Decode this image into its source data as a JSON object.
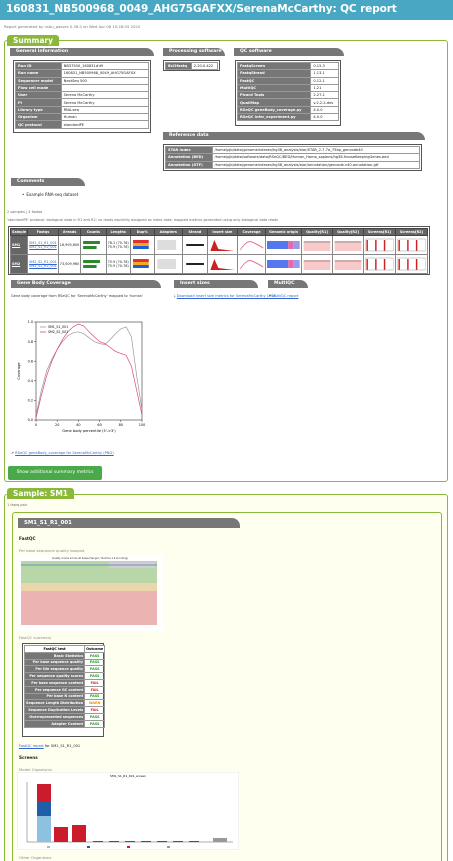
{
  "header": {
    "title": "160831_NB500968_0049_AHG75GAFXX/SerenaMcCarthy: QC report",
    "generated": "Report generated by nsbu_passes 0.36.0 on Wed Apr 08 10:28:05 2020"
  },
  "summary": {
    "tab": "Summary",
    "general_info": {
      "title": "General information",
      "rows": [
        {
          "k": "Run ID",
          "v": "NB37500_160831#49"
        },
        {
          "k": "Run name",
          "v": "160831_NB500968_0049_AHG75GAFXX"
        },
        {
          "k": "Sequencer model",
          "v": "NextSeq 500"
        },
        {
          "k": "Flow cell mode",
          "v": ""
        },
        {
          "k": "User",
          "v": "Serena McCarthy"
        },
        {
          "k": "PI",
          "v": "Serena McCarthy"
        },
        {
          "k": "Library type",
          "v": "RNA-seq"
        },
        {
          "k": "Organism",
          "v": "Human"
        },
        {
          "k": "QC protocol",
          "v": "standardPE"
        }
      ]
    },
    "processing": {
      "title": "Processing software",
      "rows": [
        {
          "k": "Bcl2fastq",
          "v": "2.20.0.422"
        }
      ]
    },
    "qc_software": {
      "title": "QC software",
      "rows": [
        {
          "k": "FastqScreen",
          "v": "0.15.3"
        },
        {
          "k": "FastqStrand",
          "v": "1.13.1"
        },
        {
          "k": "FastQC",
          "v": "0.12.1"
        },
        {
          "k": "MultiQC",
          "v": "1.21"
        },
        {
          "k": "Picard Tools",
          "v": "2.27.1"
        },
        {
          "k": "QualiMap",
          "v": "v.2.2.2-dev"
        },
        {
          "k": "RSeQC geneBody_coverage.py",
          "v": "4.0.0"
        },
        {
          "k": "RSeQC infer_experiment.py",
          "v": "4.0.0"
        }
      ]
    },
    "reference": {
      "title": "Reference data",
      "rows": [
        {
          "k": "STAR index",
          "v": "/home/pjb/data/genomeindexes/hg38_analysis/star/STAR_2.7.7a_75bp_gencode40"
        },
        {
          "k": "Annotation (BED)",
          "v": "/home/pjb/data/software/data/RSeQC/BED/Human_Homo_sapiens/hg38.HouseKeepingGenes.bed"
        },
        {
          "k": "Annotation (GTF)",
          "v": "/home/pjb/data/genomeindexes/hg38_analysis/star/annotation/gencode.v40.annotation.gtf"
        }
      ]
    },
    "comments": {
      "title": "Comments",
      "items": [
        "Example RNA-seq dataset"
      ]
    },
    "samples_count": "2 samples | 4 fastqs",
    "protocol_note": "'standardPE' protocol: biological data in R1 and R2; no reads explicitly assigned as index data; mapped metrics generated using only biological data reads",
    "table": {
      "headers": [
        "Sample",
        "Fastqs",
        "#reads",
        "Counts",
        "Lengths",
        "Dup%",
        "Adapters",
        "Strand",
        "Insert size",
        "Coverage",
        "Genomic origin",
        "Quality[R1]",
        "Quality[R2]",
        "Screens[R1]",
        "Screens[R2]"
      ],
      "rows": [
        {
          "sample": "SM1",
          "fastqs": [
            "SM1_S1_R1_001",
            "SM1_S1_R2_001"
          ],
          "reads": "16,993,600",
          "lengths": [
            "76.1 (70-76)",
            "75.9 (70-76)"
          ]
        },
        {
          "sample": "SM2",
          "fastqs": [
            "SM2_S2_R1_001",
            "SM2_S2_R2_001"
          ],
          "reads": "73,509,960",
          "lengths": [
            "75.9 (70-76)",
            "75.9 (70-76)"
          ]
        }
      ]
    },
    "genebody": {
      "title": "Gene Body Coverage",
      "desc": "Gene body coverage from RSeQC for 'SerenaMcCarthy' mapped to 'human'",
      "link": "RSeQC geneBody_coverage for SerenaMcCarthy (PNG)",
      "legend": [
        "SM1_S1_001",
        "SM2_S2_001"
      ]
    },
    "insert_sizes": {
      "title": "Insert sizes",
      "link": "Download insert size metrics for SerenaMcCarthy (TSV)"
    },
    "multiqc": {
      "title": "MultiQC",
      "link": "MultiQC report"
    },
    "more_button": "Show additional summary metrics"
  },
  "chart_data": {
    "type": "line",
    "xlabel": "Gene body percentile (5'->3')",
    "ylabel": "Coverage",
    "xlim": [
      0,
      100
    ],
    "ylim": [
      0,
      1.0
    ],
    "xticks": [
      0,
      20,
      40,
      60,
      80,
      100
    ],
    "yticks": [
      0,
      0.2,
      0.4,
      0.6,
      0.8,
      1.0
    ],
    "legend_placement": "top-left",
    "series": [
      {
        "name": "SM1_S1_001",
        "color": "#999999",
        "x": [
          0,
          5,
          10,
          15,
          20,
          25,
          30,
          35,
          40,
          45,
          50,
          55,
          60,
          65,
          70,
          75,
          80,
          85,
          90,
          95,
          100
        ],
        "y": [
          0.05,
          0.3,
          0.5,
          0.62,
          0.72,
          0.8,
          0.86,
          0.89,
          0.9,
          0.88,
          0.84,
          0.8,
          0.78,
          0.77,
          0.82,
          0.88,
          0.93,
          0.95,
          0.85,
          0.45,
          0.1
        ]
      },
      {
        "name": "SM2_S2_001",
        "color": "#e0457b",
        "x": [
          0,
          5,
          10,
          15,
          20,
          25,
          30,
          35,
          40,
          45,
          50,
          55,
          60,
          65,
          70,
          75,
          80,
          85,
          90,
          95,
          100
        ],
        "y": [
          0.02,
          0.25,
          0.45,
          0.6,
          0.72,
          0.82,
          0.9,
          0.95,
          0.98,
          0.96,
          0.9,
          0.85,
          0.8,
          0.78,
          0.74,
          0.7,
          0.68,
          0.66,
          0.55,
          0.3,
          0.05
        ]
      }
    ]
  },
  "sample": {
    "tab": "Sample: SM1",
    "reads_label": "1 fastq pair",
    "fastq": {
      "title": "SM1_S1_R1_001",
      "fastqc_label": "FastQC",
      "perbase_label": "Per base sequence quality boxplot",
      "perbase_chart_title": "Quality scores across all bases (Sanger / Illumina 1.9 encoding)",
      "summary_label": "FastQC summary",
      "summary_headers": [
        "FastQC test",
        "Outcome"
      ],
      "summary_rows": [
        {
          "test": "Basic Statistics",
          "outcome": "PASS"
        },
        {
          "test": "Per base sequence quality",
          "outcome": "PASS"
        },
        {
          "test": "Per tile sequence quality",
          "outcome": "PASS"
        },
        {
          "test": "Per sequence quality scores",
          "outcome": "PASS"
        },
        {
          "test": "Per base sequence content",
          "outcome": "FAIL"
        },
        {
          "test": "Per sequence GC content",
          "outcome": "FAIL"
        },
        {
          "test": "Per base N content",
          "outcome": "PASS"
        },
        {
          "test": "Sequence Length Distribution",
          "outcome": "WARN"
        },
        {
          "test": "Sequence Duplication Levels",
          "outcome": "FAIL"
        },
        {
          "test": "Overrepresented sequences",
          "outcome": "PASS"
        },
        {
          "test": "Adapter Content",
          "outcome": "PASS"
        }
      ],
      "report_link": "FastQC report",
      "report_suffix": "for SM1_S1_R1_001",
      "screens_label": "Screens",
      "model_label": "Model Organisms",
      "screen_chart_title": "SM1_S1_R1_001_screen",
      "other_label": "Other Organisms"
    }
  },
  "colors": {
    "accent": "#48a8c4",
    "panel": "#8ab93a",
    "header_gray": "#777777"
  }
}
